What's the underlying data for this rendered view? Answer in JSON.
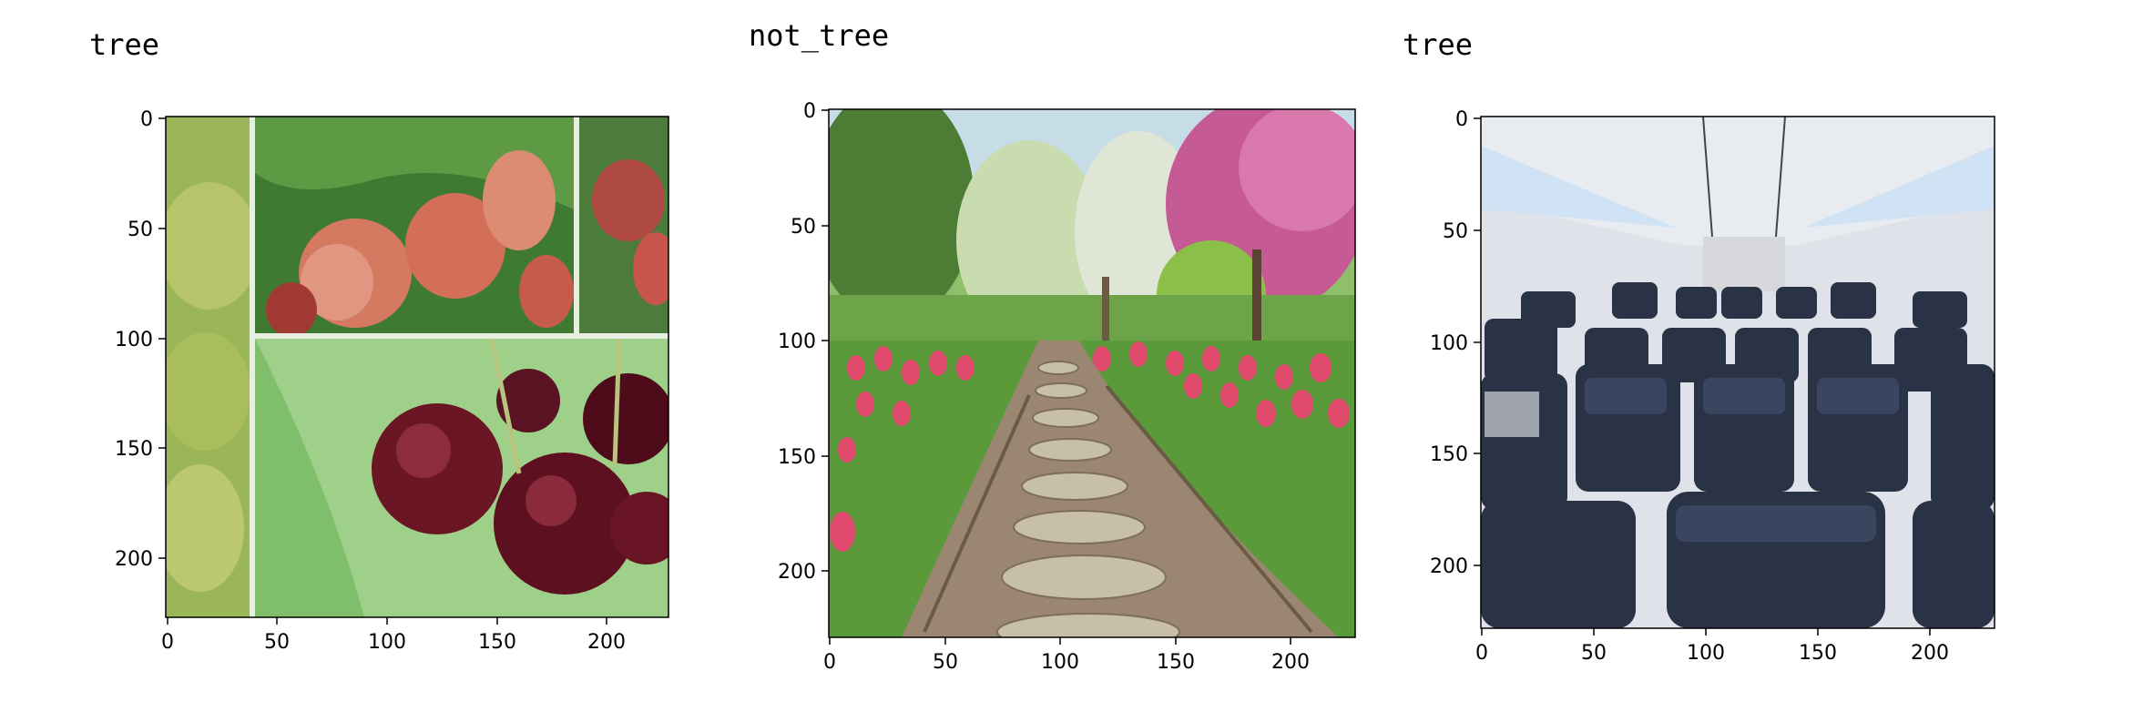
{
  "panels": [
    {
      "title": "tree",
      "subject": "apple and cherry fruit collage",
      "x_ticks": [
        "0",
        "50",
        "100",
        "150",
        "200"
      ],
      "y_ticks": [
        "0",
        "50",
        "100",
        "150",
        "200"
      ]
    },
    {
      "title": "not_tree",
      "subject": "garden path with tulips and blossoming trees",
      "x_ticks": [
        "0",
        "50",
        "100",
        "150",
        "200"
      ],
      "y_ticks": [
        "0",
        "50",
        "100",
        "150",
        "200"
      ]
    },
    {
      "title": "tree",
      "subject": "airplane cabin with rows of seats",
      "x_ticks": [
        "0",
        "50",
        "100",
        "150",
        "200"
      ],
      "y_ticks": [
        "0",
        "50",
        "100",
        "150",
        "200"
      ]
    }
  ]
}
